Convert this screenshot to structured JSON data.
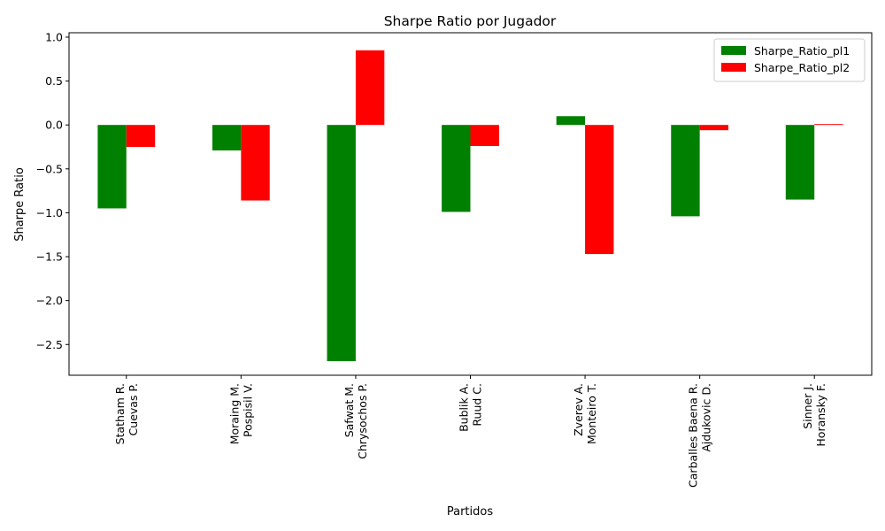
{
  "chart_data": {
    "type": "bar",
    "title": "Sharpe Ratio por Jugador",
    "xlabel": "Partidos",
    "ylabel": "Sharpe Ratio",
    "ylim": [
      -2.85,
      1.05
    ],
    "yticks": [
      1.0,
      0.5,
      0.0,
      -0.5,
      -1.0,
      -1.5,
      -2.0,
      -2.5
    ],
    "ytick_labels": [
      "1.0",
      "0.5",
      "0.0",
      "−0.5",
      "−1.0",
      "−1.5",
      "−2.0",
      "−2.5"
    ],
    "categories": [
      [
        "Statham R.",
        "Cuevas P."
      ],
      [
        "Moraing M.",
        "Pospisil V."
      ],
      [
        "Safwat M.",
        "Chrysochos P."
      ],
      [
        "Bublik A.",
        "Ruud C."
      ],
      [
        "Zverev A.",
        "Monteiro T."
      ],
      [
        "Carballes Baena R.",
        "Ajdukovic D."
      ],
      [
        "Sinner J.",
        "Horansky F."
      ]
    ],
    "series": [
      {
        "name": "Sharpe_Ratio_pl1",
        "color": "#008000",
        "values": [
          -0.95,
          -0.29,
          -2.69,
          -0.99,
          0.1,
          -1.04,
          -0.85
        ]
      },
      {
        "name": "Sharpe_Ratio_pl2",
        "color": "#ff0000",
        "values": [
          -0.25,
          -0.86,
          0.85,
          -0.24,
          -1.47,
          -0.06,
          0.01
        ]
      }
    ],
    "legend": "top-right",
    "grid": false
  }
}
